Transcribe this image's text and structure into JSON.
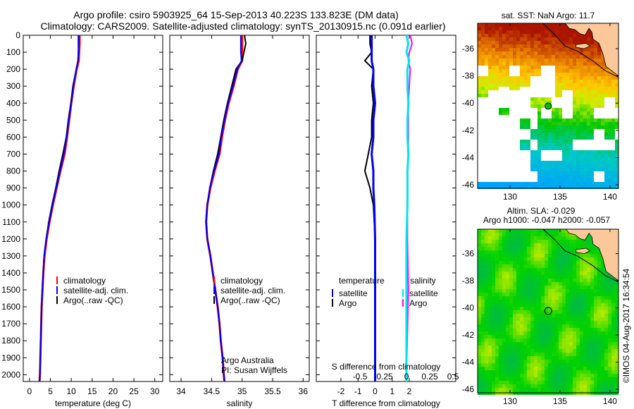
{
  "header": {
    "title_line1": "Argo profile: csiro 5903925_64 15-Sep-2013 40.223S 133.823E (DM data)",
    "title_line2": "Climatology: CARS2009. Satellite-adjusted climatology: synTS_20130915.nc (0.091d earlier)"
  },
  "colors": {
    "climatology": "#ff0000",
    "satellite": "#0000ff",
    "argo": "#000000",
    "sal_satellite": "#00e5ee",
    "sal_argo": "#ff00ff",
    "land": "#fcc89a"
  },
  "chart_data": [
    {
      "type": "line",
      "id": "temperature",
      "xlabel": "temperature (deg C)",
      "ylabel": "",
      "xlim": [
        -1.5,
        31.9
      ],
      "ylim": [
        2040,
        0
      ],
      "xticks": [
        0,
        5,
        10,
        15,
        20,
        25,
        30
      ],
      "yticks": [
        0,
        100,
        200,
        300,
        400,
        500,
        600,
        700,
        800,
        900,
        1000,
        1100,
        1200,
        1300,
        1400,
        1500,
        1600,
        1700,
        1800,
        1900,
        2000
      ],
      "legend": [
        "climatology",
        "satellite-adj. clim.",
        "Argo(..raw -QC)"
      ],
      "depth": [
        0,
        50,
        100,
        150,
        200,
        300,
        400,
        500,
        600,
        700,
        800,
        900,
        1000,
        1100,
        1200,
        1300,
        1400,
        1500,
        1600,
        1700,
        1800,
        1900,
        2000,
        2040
      ],
      "series": [
        {
          "name": "climatology",
          "values": [
            12.0,
            12.0,
            11.9,
            11.8,
            11.3,
            10.6,
            10.0,
            9.5,
            9.0,
            8.4,
            7.4,
            6.5,
            5.6,
            4.8,
            4.1,
            3.6,
            3.3,
            3.1,
            2.9,
            2.8,
            2.7,
            2.6,
            2.5,
            2.4
          ]
        },
        {
          "name": "satellite-adj. clim.",
          "values": [
            11.8,
            11.8,
            11.7,
            11.6,
            11.2,
            10.5,
            10.0,
            9.4,
            8.9,
            8.2,
            7.3,
            6.4,
            5.5,
            4.7,
            4.0,
            3.5,
            3.3,
            3.1,
            2.9,
            2.8,
            2.7,
            2.6,
            2.5,
            2.4
          ]
        },
        {
          "name": "Argo(..raw -QC)",
          "values": [
            11.7,
            11.7,
            11.7,
            11.6,
            11.2,
            10.4,
            9.9,
            9.3,
            8.8,
            8.0,
            7.1,
            6.3,
            5.4,
            4.6,
            4.0,
            3.5,
            3.3,
            3.1,
            2.9,
            2.8,
            2.7,
            2.6,
            2.5,
            2.4
          ]
        }
      ]
    },
    {
      "type": "line",
      "id": "salinity",
      "xlabel": "salinity",
      "xlim": [
        33.815,
        36.1
      ],
      "ylim": [
        2040,
        0
      ],
      "xticks": [
        34,
        34.5,
        35,
        35.5,
        36
      ],
      "legend": [
        "climatology",
        "satellite-adj. clim.",
        "Argo(..raw -QC)"
      ],
      "annotation": [
        "Argo Australia",
        "PI: Susan Wijffels"
      ],
      "depth": [
        0,
        50,
        100,
        150,
        200,
        300,
        400,
        500,
        600,
        700,
        800,
        900,
        1000,
        1100,
        1200,
        1300,
        1400,
        1500,
        1600,
        1700,
        1800,
        1900,
        2000,
        2040
      ],
      "series": [
        {
          "name": "climatology",
          "values": [
            35.0,
            35.0,
            35.0,
            35.0,
            34.93,
            34.86,
            34.78,
            34.72,
            34.67,
            34.63,
            34.55,
            34.48,
            34.43,
            34.41,
            34.43,
            34.48,
            34.52,
            34.56,
            34.6,
            34.63,
            34.65,
            34.68,
            34.7,
            34.71
          ]
        },
        {
          "name": "satellite-adj. clim.",
          "values": [
            34.98,
            34.98,
            34.98,
            34.99,
            34.92,
            34.85,
            34.77,
            34.71,
            34.66,
            34.62,
            34.54,
            34.47,
            34.43,
            34.41,
            34.43,
            34.48,
            34.52,
            34.56,
            34.6,
            34.63,
            34.65,
            34.68,
            34.7,
            34.71
          ]
        },
        {
          "name": "Argo(..raw -QC)",
          "values": [
            35.04,
            35.06,
            35.03,
            35.0,
            34.9,
            34.83,
            34.76,
            34.7,
            34.65,
            34.6,
            34.53,
            34.47,
            34.43,
            34.41,
            34.43,
            34.48,
            34.52,
            34.56,
            34.6,
            34.63,
            34.65,
            34.68,
            34.7,
            34.71
          ]
        }
      ]
    },
    {
      "type": "line",
      "id": "difference",
      "xlabel": "T difference from climatology",
      "x2label": "S difference from climatology",
      "xlim": [
        -3.44,
        4.72
      ],
      "x2lim": [
        -0.97,
        0.53
      ],
      "xticks": [
        -2,
        -1,
        0,
        1,
        2
      ],
      "x2ticks": [
        -0.5,
        -0.25,
        0,
        0.25,
        0.5
      ],
      "legend_headers": [
        "temperature",
        "salinity"
      ],
      "legend": [
        "satellite",
        "Argo",
        "satellite",
        "Argo"
      ],
      "depth": [
        0,
        50,
        100,
        150,
        200,
        300,
        400,
        500,
        600,
        700,
        800,
        900,
        1000,
        1200,
        1500,
        2000,
        2040
      ],
      "series": [
        {
          "name": "T satellite",
          "values": [
            -0.2,
            -0.2,
            -0.2,
            -0.2,
            -0.1,
            -0.1,
            0,
            -0.1,
            -0.1,
            -0.2,
            -0.1,
            -0.1,
            -0.05,
            0,
            0,
            0,
            0
          ]
        },
        {
          "name": "T Argo",
          "values": [
            -0.3,
            -0.3,
            -0.2,
            -0.6,
            -0.1,
            -0.2,
            -0.1,
            -0.2,
            -0.2,
            -0.4,
            -0.6,
            -0.3,
            -0.1,
            0,
            0,
            0,
            0
          ]
        },
        {
          "name": "S satellite",
          "values": [
            0,
            0.02,
            0,
            0.03,
            0.01,
            0.01,
            0.02,
            0.01,
            0.01,
            0.02,
            0.01,
            0.01,
            0.01,
            0,
            0,
            0,
            0
          ]
        },
        {
          "name": "S Argo",
          "values": [
            0.04,
            0.06,
            0.03,
            0.02,
            0.04,
            0.03,
            0.02,
            0.02,
            0.02,
            0.02,
            0.01,
            0.01,
            0.01,
            0.01,
            0.02,
            0,
            0
          ]
        }
      ]
    },
    {
      "type": "heatmap",
      "id": "sst-map",
      "title": "sat. SST: NaN Argo: 11.7",
      "xlim": [
        126.76,
        140.85
      ],
      "ylim": [
        -46.26,
        -34.13
      ],
      "xticks": [
        130,
        135,
        140
      ],
      "yticks": [
        -36,
        -38,
        -40,
        -42,
        -44,
        -46
      ],
      "argo_position": [
        133.823,
        -40.223
      ]
    },
    {
      "type": "heatmap",
      "id": "sla-map",
      "title_line1": "Altim. SLA: -0.029",
      "title_line2": "Argo h1000: -0.047 h2000: -0.057",
      "xlim": [
        126.76,
        140.85
      ],
      "ylim": [
        -46.26,
        -34.2
      ],
      "xticks": [
        130,
        135,
        140
      ],
      "yticks": [
        -36,
        -38,
        -40,
        -42,
        -44,
        -46
      ],
      "argo_position": [
        133.823,
        -40.223
      ],
      "credit": "©IMOS 04-Aug-2017 16:34:54"
    }
  ]
}
